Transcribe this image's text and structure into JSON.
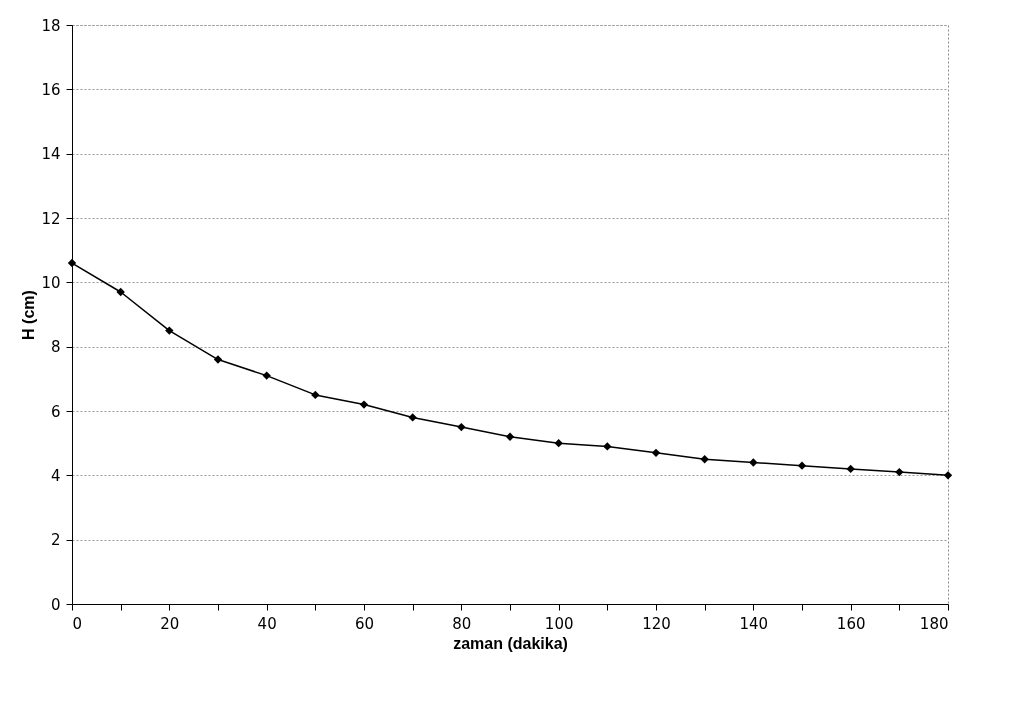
{
  "chart_data": {
    "type": "line",
    "xlabel": "zaman (dakika)",
    "ylabel": "H  (cm)",
    "x": [
      0,
      10,
      20,
      30,
      40,
      50,
      60,
      70,
      80,
      90,
      100,
      110,
      120,
      130,
      140,
      150,
      160,
      170,
      180
    ],
    "series": [
      {
        "color": "#000000",
        "values": [
          10.6,
          9.7,
          8.5,
          7.6,
          7.1,
          6.5,
          6.2,
          5.8,
          5.5,
          5.2,
          5.0,
          4.9,
          4.7,
          4.5,
          4.4,
          4.3,
          4.2,
          4.1,
          4.0
        ]
      }
    ],
    "xlim": [
      0,
      180
    ],
    "ylim": [
      0,
      18
    ],
    "xticks": [
      0,
      {
        "value": 10,
        "label": null
      },
      20,
      {
        "value": 30,
        "label": null
      },
      40,
      {
        "value": 50,
        "label": null
      },
      60,
      {
        "value": 70,
        "label": null
      },
      80,
      {
        "value": 90,
        "label": null
      },
      100,
      {
        "value": 110,
        "label": null
      },
      120,
      {
        "value": 130,
        "label": null
      },
      140,
      {
        "value": 150,
        "label": null
      },
      160,
      {
        "value": 170,
        "label": null
      },
      180
    ],
    "yticks": [
      0,
      2,
      4,
      6,
      8,
      10,
      12,
      14,
      16,
      18
    ],
    "grid": "y",
    "marker": "diamond"
  }
}
